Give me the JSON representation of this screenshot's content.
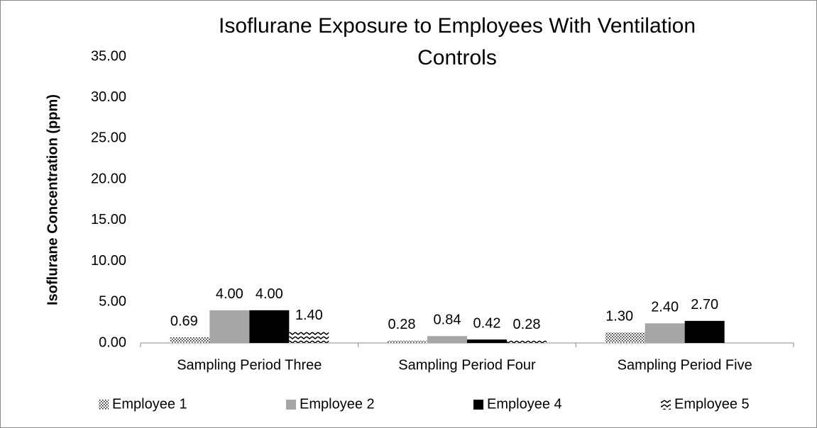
{
  "chart_data": {
    "type": "bar",
    "title": "Isoflurane Exposure to Employees With Ventilation Controls",
    "y_label": "Isoflurane Concentration (ppm)",
    "categories": [
      "Sampling Period Three",
      "Sampling Period Four",
      "Sampling Period Five"
    ],
    "series": [
      {
        "name": "Employee 1",
        "color": "#000000",
        "pattern": "dots",
        "values": [
          0.69,
          0.28,
          1.3
        ],
        "value_labels": [
          "0.69",
          "0.28",
          "1.30"
        ]
      },
      {
        "name": "Employee 2",
        "color": "#a6a6a6",
        "values": [
          4.0,
          0.84,
          2.4
        ],
        "value_labels": [
          "4.00",
          "0.84",
          "2.40"
        ]
      },
      {
        "name": "Employee 4",
        "color": "#000000",
        "values": [
          4.0,
          0.42,
          2.7
        ],
        "value_labels": [
          "4.00",
          "0.42",
          "2.70"
        ]
      },
      {
        "name": "Employee 5",
        "color": "#000000",
        "pattern": "zigzag",
        "values": [
          1.4,
          0.28,
          null
        ],
        "value_labels": [
          "1.40",
          "0.28",
          null
        ]
      }
    ],
    "ylim": [
      0,
      35
    ],
    "yticks": [
      {
        "value": 0,
        "label": "0.00"
      },
      {
        "value": 5,
        "label": "5.00"
      },
      {
        "value": 10,
        "label": "10.00"
      },
      {
        "value": 15,
        "label": "15.00"
      },
      {
        "value": 20,
        "label": "20.00"
      },
      {
        "value": 25,
        "label": "25.00"
      },
      {
        "value": 30,
        "label": "30.00"
      },
      {
        "value": 35,
        "label": "35.00"
      }
    ],
    "grid": false,
    "legend": "bottom"
  }
}
